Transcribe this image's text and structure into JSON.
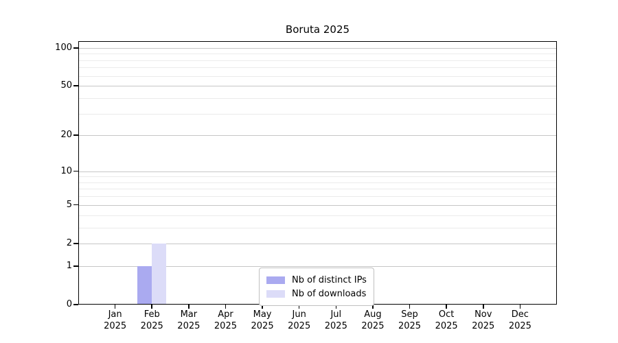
{
  "chart_data": {
    "type": "bar",
    "title": "Boruta 2025",
    "categories": [
      "Jan 2025",
      "Feb 2025",
      "Mar 2025",
      "Apr 2025",
      "May 2025",
      "Jun 2025",
      "Jul 2025",
      "Aug 2025",
      "Sep 2025",
      "Oct 2025",
      "Nov 2025",
      "Dec 2025"
    ],
    "x_tick_labels": [
      [
        "Jan",
        "2025"
      ],
      [
        "Feb",
        "2025"
      ],
      [
        "Mar",
        "2025"
      ],
      [
        "Apr",
        "2025"
      ],
      [
        "May",
        "2025"
      ],
      [
        "Jun",
        "2025"
      ],
      [
        "Jul",
        "2025"
      ],
      [
        "Aug",
        "2025"
      ],
      [
        "Sep",
        "2025"
      ],
      [
        "Oct",
        "2025"
      ],
      [
        "Nov",
        "2025"
      ],
      [
        "Dec",
        "2025"
      ]
    ],
    "series": [
      {
        "name": "Nb of distinct IPs",
        "color": "#aaaaf0",
        "values": [
          0,
          1,
          0,
          0,
          0,
          0,
          0,
          0,
          0,
          0,
          0,
          0
        ]
      },
      {
        "name": "Nb of downloads",
        "color": "#dcdcf8",
        "values": [
          0,
          2,
          0,
          0,
          0,
          0,
          0,
          0,
          0,
          0,
          0,
          0
        ]
      }
    ],
    "xlabel": "",
    "ylabel": "",
    "y_scale": "log1p",
    "ylim": [
      0,
      113
    ],
    "y_major_ticks": [
      0,
      1,
      2,
      5,
      10,
      20,
      50,
      100
    ],
    "y_major_tick_labels": [
      "0",
      "1",
      "2",
      "5",
      "10",
      "20",
      "50",
      "100"
    ],
    "y_minor_ticks": [
      3,
      4,
      6,
      7,
      8,
      9,
      30,
      40,
      60,
      70,
      80,
      90
    ],
    "grid": "horizontal",
    "legend_position": "lower center"
  },
  "colors": {
    "background": "#ffffff",
    "spine": "#000000",
    "text": "#000000",
    "major_grid": "#c6c6c6",
    "minor_grid": "#ebebeb",
    "legend_border": "#c0c0c0",
    "series_distinct_ips": "#aaaaf0",
    "series_downloads": "#dcdcf8"
  }
}
